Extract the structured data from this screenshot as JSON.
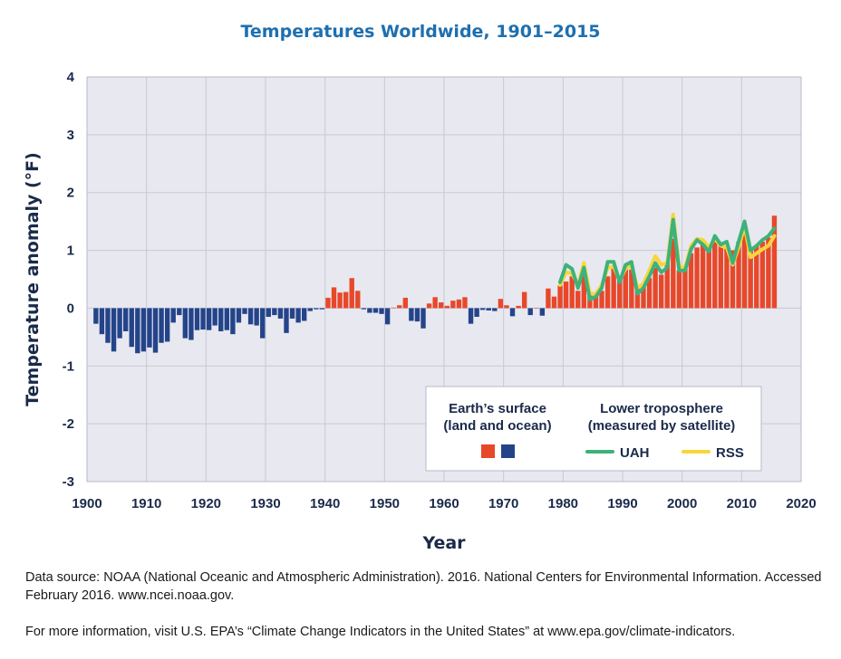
{
  "chart_data": {
    "type": "bar",
    "title": "Temperatures Worldwide, 1901–2015",
    "xlabel": "Year",
    "ylabel": "Temperature anomaly (°F)",
    "xlim": [
      1900,
      2020
    ],
    "ylim": [
      -3,
      4
    ],
    "xticks": [
      "1900",
      "1910",
      "1920",
      "1930",
      "1940",
      "1950",
      "1960",
      "1970",
      "1980",
      "1990",
      "2000",
      "2010",
      "2020"
    ],
    "yticks": [
      "4",
      "3",
      "2",
      "1",
      "0",
      "-1",
      "-2",
      "-3"
    ],
    "grid": true,
    "positive_color": "#e8482a",
    "negative_color": "#24448a",
    "surface": {
      "name": "Earth's surface (land and ocean)",
      "years": [
        1901,
        1902,
        1903,
        1904,
        1905,
        1906,
        1907,
        1908,
        1909,
        1910,
        1911,
        1912,
        1913,
        1914,
        1915,
        1916,
        1917,
        1918,
        1919,
        1920,
        1921,
        1922,
        1923,
        1924,
        1925,
        1926,
        1927,
        1928,
        1929,
        1930,
        1931,
        1932,
        1933,
        1934,
        1935,
        1936,
        1937,
        1938,
        1939,
        1940,
        1941,
        1942,
        1943,
        1944,
        1945,
        1946,
        1947,
        1948,
        1949,
        1950,
        1951,
        1952,
        1953,
        1954,
        1955,
        1956,
        1957,
        1958,
        1959,
        1960,
        1961,
        1962,
        1963,
        1964,
        1965,
        1966,
        1967,
        1968,
        1969,
        1970,
        1971,
        1972,
        1973,
        1974,
        1975,
        1976,
        1977,
        1978,
        1979,
        1980,
        1981,
        1982,
        1983,
        1984,
        1985,
        1986,
        1987,
        1988,
        1989,
        1990,
        1991,
        1992,
        1993,
        1994,
        1995,
        1996,
        1997,
        1998,
        1999,
        2000,
        2001,
        2002,
        2003,
        2004,
        2005,
        2006,
        2007,
        2008,
        2009,
        2010,
        2011,
        2012,
        2013,
        2014,
        2015
      ],
      "values": [
        -0.27,
        -0.45,
        -0.6,
        -0.75,
        -0.52,
        -0.4,
        -0.67,
        -0.78,
        -0.75,
        -0.68,
        -0.77,
        -0.6,
        -0.58,
        -0.25,
        -0.12,
        -0.52,
        -0.55,
        -0.38,
        -0.37,
        -0.38,
        -0.3,
        -0.4,
        -0.38,
        -0.45,
        -0.25,
        -0.1,
        -0.28,
        -0.3,
        -0.52,
        -0.15,
        -0.12,
        -0.18,
        -0.43,
        -0.18,
        -0.25,
        -0.22,
        -0.05,
        -0.02,
        -0.02,
        0.18,
        0.36,
        0.27,
        0.28,
        0.52,
        0.3,
        -0.02,
        -0.08,
        -0.08,
        -0.1,
        -0.28,
        0.01,
        0.05,
        0.18,
        -0.22,
        -0.23,
        -0.35,
        0.08,
        0.19,
        0.1,
        0.04,
        0.13,
        0.15,
        0.19,
        -0.27,
        -0.15,
        -0.03,
        -0.04,
        -0.05,
        0.16,
        0.05,
        -0.14,
        0.04,
        0.28,
        -0.12,
        0.0,
        -0.13,
        0.34,
        0.2,
        0.39,
        0.46,
        0.55,
        0.3,
        0.65,
        0.26,
        0.22,
        0.3,
        0.55,
        0.68,
        0.5,
        0.72,
        0.67,
        0.35,
        0.42,
        0.52,
        0.7,
        0.58,
        0.8,
        1.2,
        0.65,
        0.7,
        0.95,
        1.05,
        1.1,
        1.05,
        1.2,
        1.1,
        1.08,
        1.0,
        1.15,
        1.28,
        1.0,
        1.08,
        1.15,
        1.22,
        1.6
      ]
    },
    "series": [
      {
        "name": "UAH",
        "color": "#3db27a",
        "x": [
          1979,
          1980,
          1981,
          1982,
          1983,
          1984,
          1985,
          1986,
          1987,
          1988,
          1989,
          1990,
          1991,
          1992,
          1993,
          1994,
          1995,
          1996,
          1997,
          1998,
          1999,
          2000,
          2001,
          2002,
          2003,
          2004,
          2005,
          2006,
          2007,
          2008,
          2009,
          2010,
          2011,
          2012,
          2013,
          2014,
          2015
        ],
        "values": [
          0.45,
          0.75,
          0.68,
          0.35,
          0.7,
          0.15,
          0.2,
          0.35,
          0.8,
          0.8,
          0.45,
          0.75,
          0.8,
          0.25,
          0.35,
          0.55,
          0.78,
          0.62,
          0.7,
          1.53,
          0.65,
          0.65,
          1.02,
          1.18,
          1.1,
          0.98,
          1.25,
          1.1,
          1.15,
          0.78,
          1.15,
          1.5,
          1.0,
          1.08,
          1.18,
          1.25,
          1.38
        ]
      },
      {
        "name": "RSS",
        "color": "#f7d63a",
        "x": [
          1979,
          1980,
          1981,
          1982,
          1983,
          1984,
          1985,
          1986,
          1987,
          1988,
          1989,
          1990,
          1991,
          1992,
          1993,
          1994,
          1995,
          1996,
          1997,
          1998,
          1999,
          2000,
          2001,
          2002,
          2003,
          2004,
          2005,
          2006,
          2007,
          2008,
          2009,
          2010,
          2011,
          2012,
          2013,
          2014,
          2015
        ],
        "values": [
          0.4,
          0.62,
          0.6,
          0.4,
          0.78,
          0.25,
          0.25,
          0.4,
          0.7,
          0.72,
          0.48,
          0.68,
          0.75,
          0.35,
          0.42,
          0.65,
          0.9,
          0.75,
          0.78,
          1.62,
          0.72,
          0.7,
          1.08,
          1.2,
          1.18,
          1.05,
          1.2,
          1.08,
          1.05,
          0.75,
          1.05,
          1.42,
          0.88,
          0.95,
          1.02,
          1.08,
          1.25
        ]
      }
    ],
    "legend": {
      "position": "bottom-right",
      "surface_title_line1": "Earth’s surface",
      "surface_title_line2": "(land and ocean)",
      "satellite_title_line1": "Lower troposphere",
      "satellite_title_line2": "(measured by satellite)",
      "uah_label": "UAH",
      "rss_label": "RSS"
    }
  },
  "notes": {
    "source": "Data source: NOAA (National Oceanic and Atmospheric Administration). 2016. National Centers for Environmental Information. Accessed February 2016. www.ncei.noaa.gov.",
    "more_info": "For more information, visit U.S. EPA’s “Climate Change Indicators in the United States” at www.epa.gov/climate-indicators."
  }
}
